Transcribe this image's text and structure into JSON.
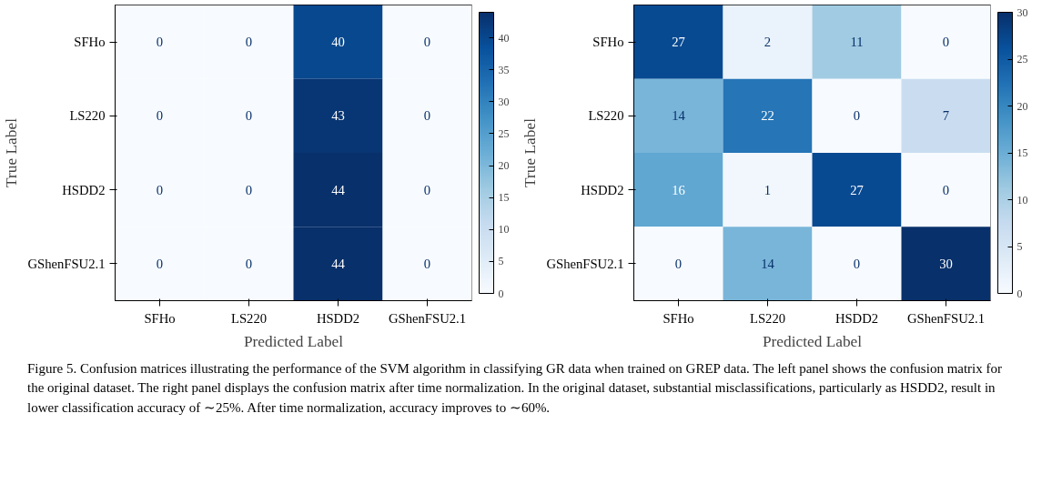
{
  "chart_data": [
    {
      "type": "heatmap",
      "xlabel": "Predicted Label",
      "ylabel": "True Label",
      "categories": [
        "SFHo",
        "LS220",
        "HSDD2",
        "GShenFSU2.1"
      ],
      "y_categories": [
        "SFHo",
        "LS220",
        "HSDD2",
        "GShenFSU2.1"
      ],
      "cells": [
        [
          0,
          0,
          40,
          0
        ],
        [
          0,
          0,
          43,
          0
        ],
        [
          0,
          0,
          44,
          0
        ],
        [
          0,
          0,
          44,
          0
        ]
      ],
      "clim": [
        0,
        44
      ],
      "cticks": [
        0,
        5,
        10,
        15,
        20,
        25,
        30,
        35,
        40
      ],
      "data_labels": true,
      "annotations": [
        "Figure 5. Confusion matrices illustrating the performance of the SVM algorithm in classifying GR data when trained on GREP data. The left panel shows the confusion matrix for the original dataset. The right panel displays the confusion matrix after time normalization. In the original dataset, substantial misclassifications, particularly as HSDD2, result in lower classification accuracy of ∼25%. After time normalization, accuracy improves to ∼60%."
      ]
    },
    {
      "type": "heatmap",
      "xlabel": "Predicted Label",
      "ylabel": "True Label",
      "categories": [
        "SFHo",
        "LS220",
        "HSDD2",
        "GShenFSU2.1"
      ],
      "y_categories": [
        "SFHo",
        "LS220",
        "HSDD2",
        "GShenFSU2.1"
      ],
      "cells": [
        [
          27,
          2,
          11,
          0
        ],
        [
          14,
          22,
          0,
          7
        ],
        [
          16,
          1,
          27,
          0
        ],
        [
          0,
          14,
          0,
          30
        ]
      ],
      "clim": [
        0,
        30
      ],
      "cticks": [
        0,
        5,
        10,
        15,
        20,
        25,
        30
      ],
      "data_labels": true
    }
  ]
}
